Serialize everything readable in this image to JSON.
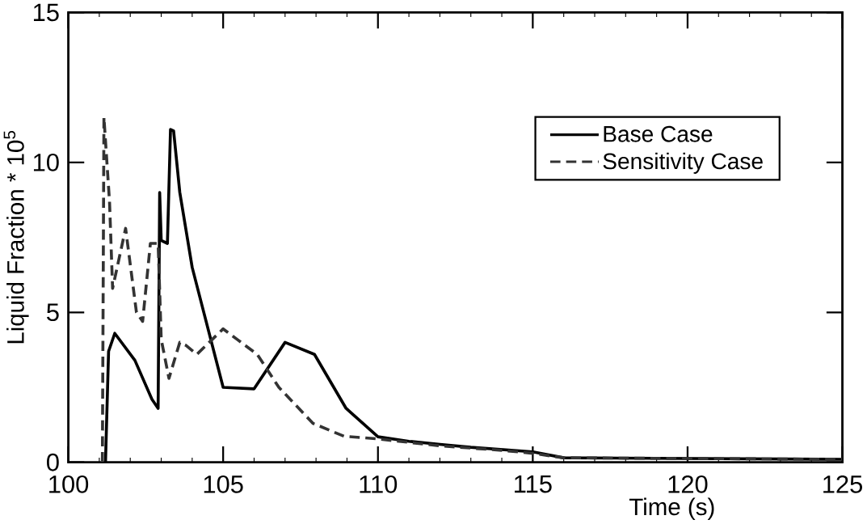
{
  "chart_data": {
    "type": "line",
    "xlabel": "Time (s)",
    "ylabel": "Liquid Fraction * 10$^{5}$",
    "xlim": [
      100,
      125
    ],
    "ylim": [
      0,
      15
    ],
    "xticks": [
      100,
      105,
      110,
      115,
      120,
      125
    ],
    "yticks": [
      0,
      5,
      10,
      15
    ],
    "grid": false,
    "legend": "top right",
    "marker": "none",
    "series": [
      {
        "name": "Base Case",
        "color": "#000000",
        "line_style": "solid",
        "x": [
          101.2,
          101.3,
          101.5,
          102.15,
          102.7,
          102.9,
          102.95,
          103.0,
          103.2,
          103.3,
          103.4,
          103.6,
          104.0,
          105.0,
          106.0,
          107.0,
          107.95,
          108.97,
          110,
          111,
          112,
          113,
          115,
          116,
          125
        ],
        "values": [
          0,
          3.7,
          4.3,
          3.4,
          2.1,
          1.8,
          9.0,
          7.4,
          7.3,
          11.1,
          11.05,
          9.0,
          6.5,
          2.5,
          2.45,
          4.0,
          3.6,
          1.8,
          0.85,
          0.7,
          0.6,
          0.5,
          0.35,
          0.15,
          0.1
        ]
      },
      {
        "name": "Sensitivity Case",
        "color": "#333333",
        "line_style": "dashed",
        "x": [
          101.1,
          101.15,
          101.33,
          101.43,
          101.85,
          102.2,
          102.4,
          102.65,
          102.9,
          103.0,
          103.25,
          103.6,
          103.8,
          104.15,
          105.0,
          105.45,
          106.1,
          106.8,
          107.9,
          108.9,
          110,
          112,
          114,
          115,
          116,
          125
        ],
        "values": [
          0,
          11.5,
          8.7,
          5.8,
          7.8,
          5.0,
          4.7,
          7.3,
          7.3,
          4.1,
          2.8,
          4.0,
          3.9,
          3.6,
          4.45,
          4.1,
          3.6,
          2.5,
          1.3,
          0.87,
          0.78,
          0.55,
          0.4,
          0.3,
          0.15,
          0.1
        ]
      }
    ]
  }
}
